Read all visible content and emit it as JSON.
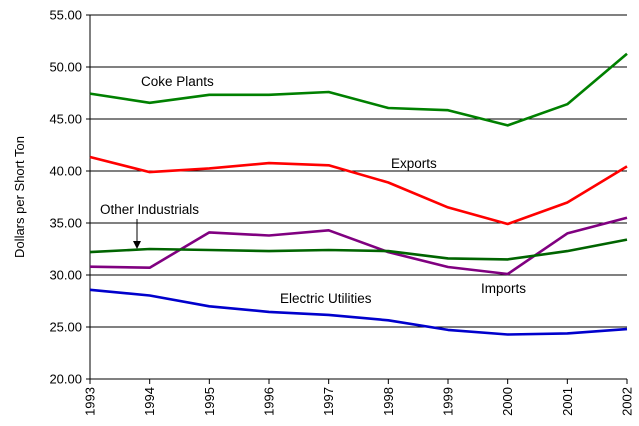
{
  "chart_data": {
    "type": "line",
    "ylabel": "Dollars per Short Ton",
    "xlabel": "",
    "title": "",
    "ylim": [
      20,
      55
    ],
    "y_ticks": [
      "20.00",
      "25.00",
      "30.00",
      "35.00",
      "40.00",
      "45.00",
      "50.00",
      "55.00"
    ],
    "categories": [
      "1993",
      "1994",
      "1995",
      "1996",
      "1997",
      "1998",
      "1999",
      "2000",
      "2001",
      "2002"
    ],
    "grid": "horizontal",
    "series": [
      {
        "name": "Coke Plants",
        "color": "#008000",
        "values": [
          47.44,
          46.56,
          47.33,
          47.33,
          47.6,
          46.06,
          45.85,
          44.38,
          46.42,
          51.27
        ]
      },
      {
        "name": "Exports",
        "color": "#ff0000",
        "values": [
          41.35,
          39.89,
          40.25,
          40.76,
          40.55,
          38.89,
          36.5,
          34.9,
          36.97,
          40.44
        ]
      },
      {
        "name": "Imports",
        "color": "#800080",
        "values": [
          30.8,
          30.7,
          34.1,
          33.8,
          34.3,
          32.2,
          30.77,
          30.1,
          34.0,
          35.5
        ]
      },
      {
        "name": "Other Industrials",
        "color": "#006400",
        "values": [
          32.2,
          32.5,
          32.4,
          32.3,
          32.4,
          32.3,
          31.6,
          31.5,
          32.3,
          33.4
        ]
      },
      {
        "name": "Electric Utilities",
        "color": "#0000cc",
        "values": [
          28.58,
          28.03,
          26.99,
          26.45,
          26.16,
          25.64,
          24.72,
          24.28,
          24.38,
          24.8
        ]
      }
    ],
    "annotations": [
      {
        "text": "Coke Plants",
        "series": "Coke Plants"
      },
      {
        "text": "Exports",
        "series": "Exports"
      },
      {
        "text": "Other Industrials",
        "series": "Other Industrials",
        "arrow": true
      },
      {
        "text": "Imports",
        "series": "Imports"
      },
      {
        "text": "Electric Utilities",
        "series": "Electric Utilities"
      }
    ]
  }
}
